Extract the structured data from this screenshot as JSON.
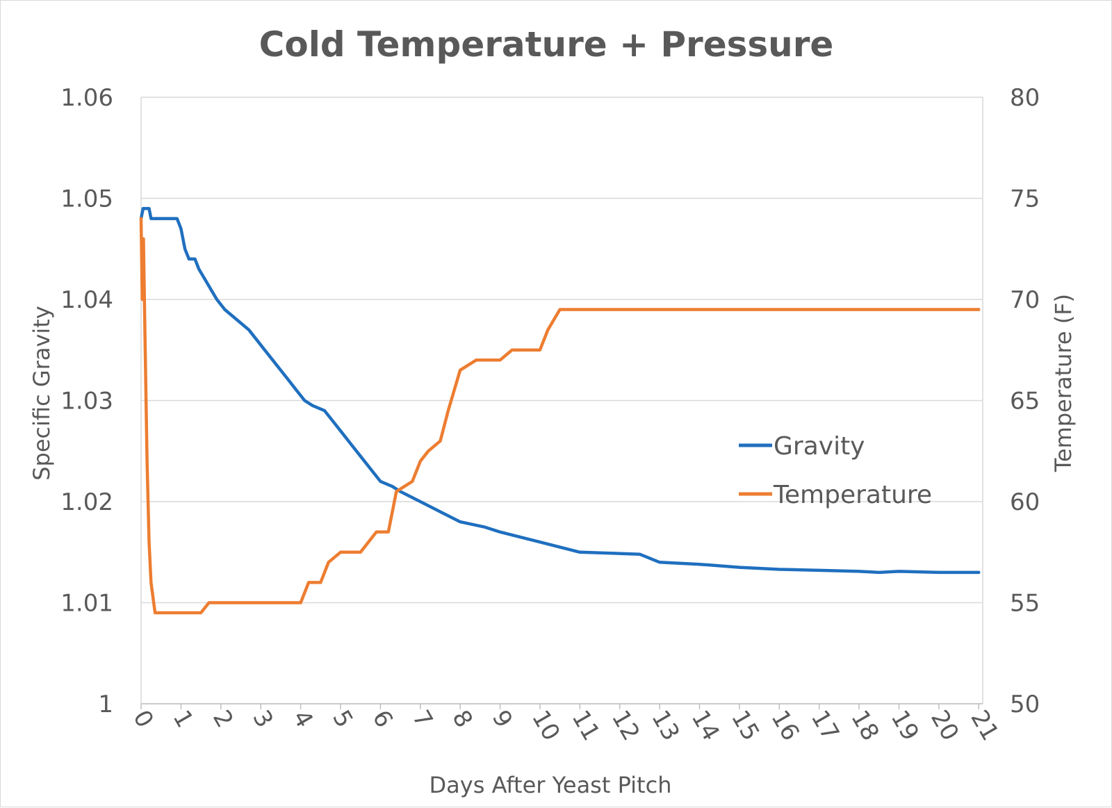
{
  "chart_data": {
    "type": "line",
    "title": "Cold Temperature + Pressure",
    "xlabel": "Days After Yeast Pitch",
    "ylabel": "Specific Gravity",
    "y2label": "Temperature (F)",
    "xlim": [
      0,
      21.1
    ],
    "ylim": [
      1.0,
      1.06
    ],
    "y2lim": [
      50,
      80
    ],
    "y_ticks": [
      "1",
      "1.01",
      "1.02",
      "1.03",
      "1.04",
      "1.05",
      "1.06"
    ],
    "y2_ticks": [
      "50",
      "55",
      "60",
      "65",
      "70",
      "75",
      "80"
    ],
    "x_ticks": [
      {
        "label": "0",
        "value": 0
      },
      {
        "label": "1",
        "value": 1
      },
      {
        "label": "2",
        "value": 2
      },
      {
        "label": "3",
        "value": 3
      },
      {
        "label": "4",
        "value": 4
      },
      {
        "label": "5",
        "value": 5
      },
      {
        "label": "6",
        "value": 6
      },
      {
        "label": "7",
        "value": 7
      },
      {
        "label": "8",
        "value": 8
      },
      {
        "label": "9",
        "value": 9
      },
      {
        "label": "10",
        "value": 10
      },
      {
        "label": "11",
        "value": 11
      },
      {
        "label": "12",
        "value": 12
      },
      {
        "label": "13",
        "value": 13
      },
      {
        "label": "14",
        "value": 14
      },
      {
        "label": "15",
        "value": 15
      },
      {
        "label": "16",
        "value": 16
      },
      {
        "label": "17",
        "value": 17
      },
      {
        "label": "18",
        "value": 18
      },
      {
        "label": "19",
        "value": 19
      },
      {
        "label": "20",
        "value": 20
      },
      {
        "label": "21",
        "value": 21
      }
    ],
    "grid": true,
    "legend_position": "right",
    "series": [
      {
        "name": "Gravity",
        "axis": "left",
        "color": "#1f6fbf",
        "points": [
          [
            0.0,
            1.048
          ],
          [
            0.05,
            1.049
          ],
          [
            0.2,
            1.049
          ],
          [
            0.25,
            1.048
          ],
          [
            0.9,
            1.048
          ],
          [
            1.0,
            1.047
          ],
          [
            1.1,
            1.045
          ],
          [
            1.2,
            1.044
          ],
          [
            1.35,
            1.044
          ],
          [
            1.45,
            1.043
          ],
          [
            1.6,
            1.042
          ],
          [
            1.75,
            1.041
          ],
          [
            1.9,
            1.04
          ],
          [
            2.1,
            1.039
          ],
          [
            2.4,
            1.038
          ],
          [
            2.7,
            1.037
          ],
          [
            2.9,
            1.036
          ],
          [
            3.1,
            1.035
          ],
          [
            3.3,
            1.034
          ],
          [
            3.5,
            1.033
          ],
          [
            3.7,
            1.032
          ],
          [
            3.9,
            1.031
          ],
          [
            4.1,
            1.03
          ],
          [
            4.3,
            1.0295
          ],
          [
            4.6,
            1.029
          ],
          [
            4.8,
            1.028
          ],
          [
            5.0,
            1.027
          ],
          [
            5.2,
            1.026
          ],
          [
            5.4,
            1.025
          ],
          [
            5.6,
            1.024
          ],
          [
            5.8,
            1.023
          ],
          [
            6.0,
            1.022
          ],
          [
            6.3,
            1.0215
          ],
          [
            6.5,
            1.021
          ],
          [
            7.0,
            1.02
          ],
          [
            7.5,
            1.019
          ],
          [
            8.0,
            1.018
          ],
          [
            8.6,
            1.0175
          ],
          [
            9.0,
            1.017
          ],
          [
            10.0,
            1.016
          ],
          [
            11.0,
            1.015
          ],
          [
            12.5,
            1.0148
          ],
          [
            13.0,
            1.014
          ],
          [
            14.0,
            1.0138
          ],
          [
            15.0,
            1.0135
          ],
          [
            16.0,
            1.0133
          ],
          [
            17.0,
            1.0132
          ],
          [
            18.0,
            1.0131
          ],
          [
            18.5,
            1.013
          ],
          [
            19.0,
            1.0131
          ],
          [
            20.0,
            1.013
          ],
          [
            21.0,
            1.013
          ]
        ]
      },
      {
        "name": "Temperature",
        "axis": "right",
        "color": "#ed7d31",
        "points": [
          [
            0.0,
            74.0
          ],
          [
            0.03,
            70.0
          ],
          [
            0.06,
            73.0
          ],
          [
            0.1,
            68.0
          ],
          [
            0.15,
            62.0
          ],
          [
            0.2,
            58.0
          ],
          [
            0.25,
            56.0
          ],
          [
            0.35,
            54.5
          ],
          [
            0.5,
            54.5
          ],
          [
            0.8,
            54.5
          ],
          [
            1.0,
            54.5
          ],
          [
            1.2,
            54.5
          ],
          [
            1.5,
            54.5
          ],
          [
            1.7,
            55.0
          ],
          [
            2.0,
            55.0
          ],
          [
            2.5,
            55.0
          ],
          [
            3.0,
            55.0
          ],
          [
            3.5,
            55.0
          ],
          [
            4.0,
            55.0
          ],
          [
            4.2,
            56.0
          ],
          [
            4.5,
            56.0
          ],
          [
            4.7,
            57.0
          ],
          [
            5.0,
            57.5
          ],
          [
            5.5,
            57.5
          ],
          [
            5.9,
            58.5
          ],
          [
            6.2,
            58.5
          ],
          [
            6.4,
            60.5
          ],
          [
            6.8,
            61.0
          ],
          [
            7.0,
            62.0
          ],
          [
            7.2,
            62.5
          ],
          [
            7.5,
            63.0
          ],
          [
            7.7,
            64.5
          ],
          [
            7.85,
            65.5
          ],
          [
            8.0,
            66.5
          ],
          [
            8.4,
            67.0
          ],
          [
            9.0,
            67.0
          ],
          [
            9.3,
            67.5
          ],
          [
            10.0,
            67.5
          ],
          [
            10.2,
            68.5
          ],
          [
            10.5,
            69.5
          ],
          [
            10.7,
            69.5
          ],
          [
            11.0,
            69.5
          ],
          [
            12.0,
            69.5
          ],
          [
            13.0,
            69.5
          ],
          [
            14.0,
            69.5
          ],
          [
            15.0,
            69.5
          ],
          [
            16.0,
            69.5
          ],
          [
            17.0,
            69.5
          ],
          [
            18.0,
            69.5
          ],
          [
            19.0,
            69.5
          ],
          [
            20.0,
            69.5
          ],
          [
            21.0,
            69.5
          ]
        ]
      }
    ]
  }
}
